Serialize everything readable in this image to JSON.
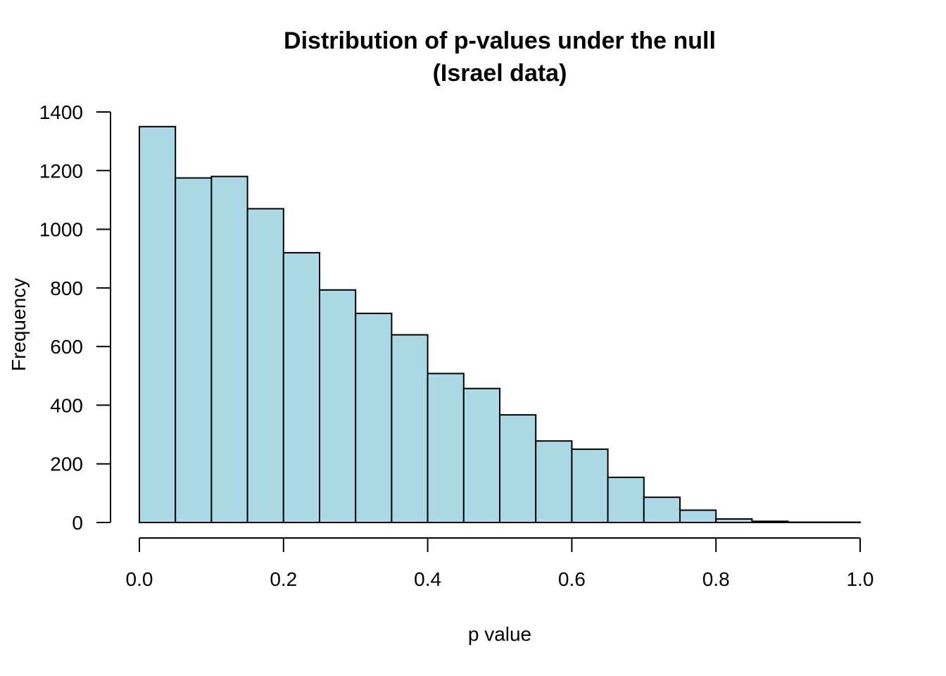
{
  "chart_data": {
    "type": "bar",
    "title_lines": [
      "Distribution of p-values under the null",
      "(Israel data)"
    ],
    "xlabel": "p value",
    "ylabel": "Frequency",
    "bar_color": "#add8e6",
    "bin_edges": [
      0.0,
      0.05,
      0.1,
      0.15,
      0.2,
      0.25,
      0.3,
      0.35,
      0.4,
      0.45,
      0.5,
      0.55,
      0.6,
      0.65,
      0.7,
      0.75,
      0.8,
      0.85,
      0.9,
      0.95,
      1.0
    ],
    "values": [
      1350,
      1175,
      1180,
      1070,
      920,
      793,
      713,
      640,
      508,
      457,
      367,
      278,
      250,
      154,
      86,
      42,
      12,
      4,
      1,
      1
    ],
    "xlim": [
      0.0,
      1.0
    ],
    "ylim": [
      0,
      1400
    ],
    "x_ticks": [
      "0.0",
      "0.2",
      "0.4",
      "0.6",
      "0.8",
      "1.0"
    ],
    "y_ticks": [
      "0",
      "200",
      "400",
      "600",
      "800",
      "1000",
      "1200",
      "1400"
    ],
    "grid": false,
    "legend": "none"
  }
}
